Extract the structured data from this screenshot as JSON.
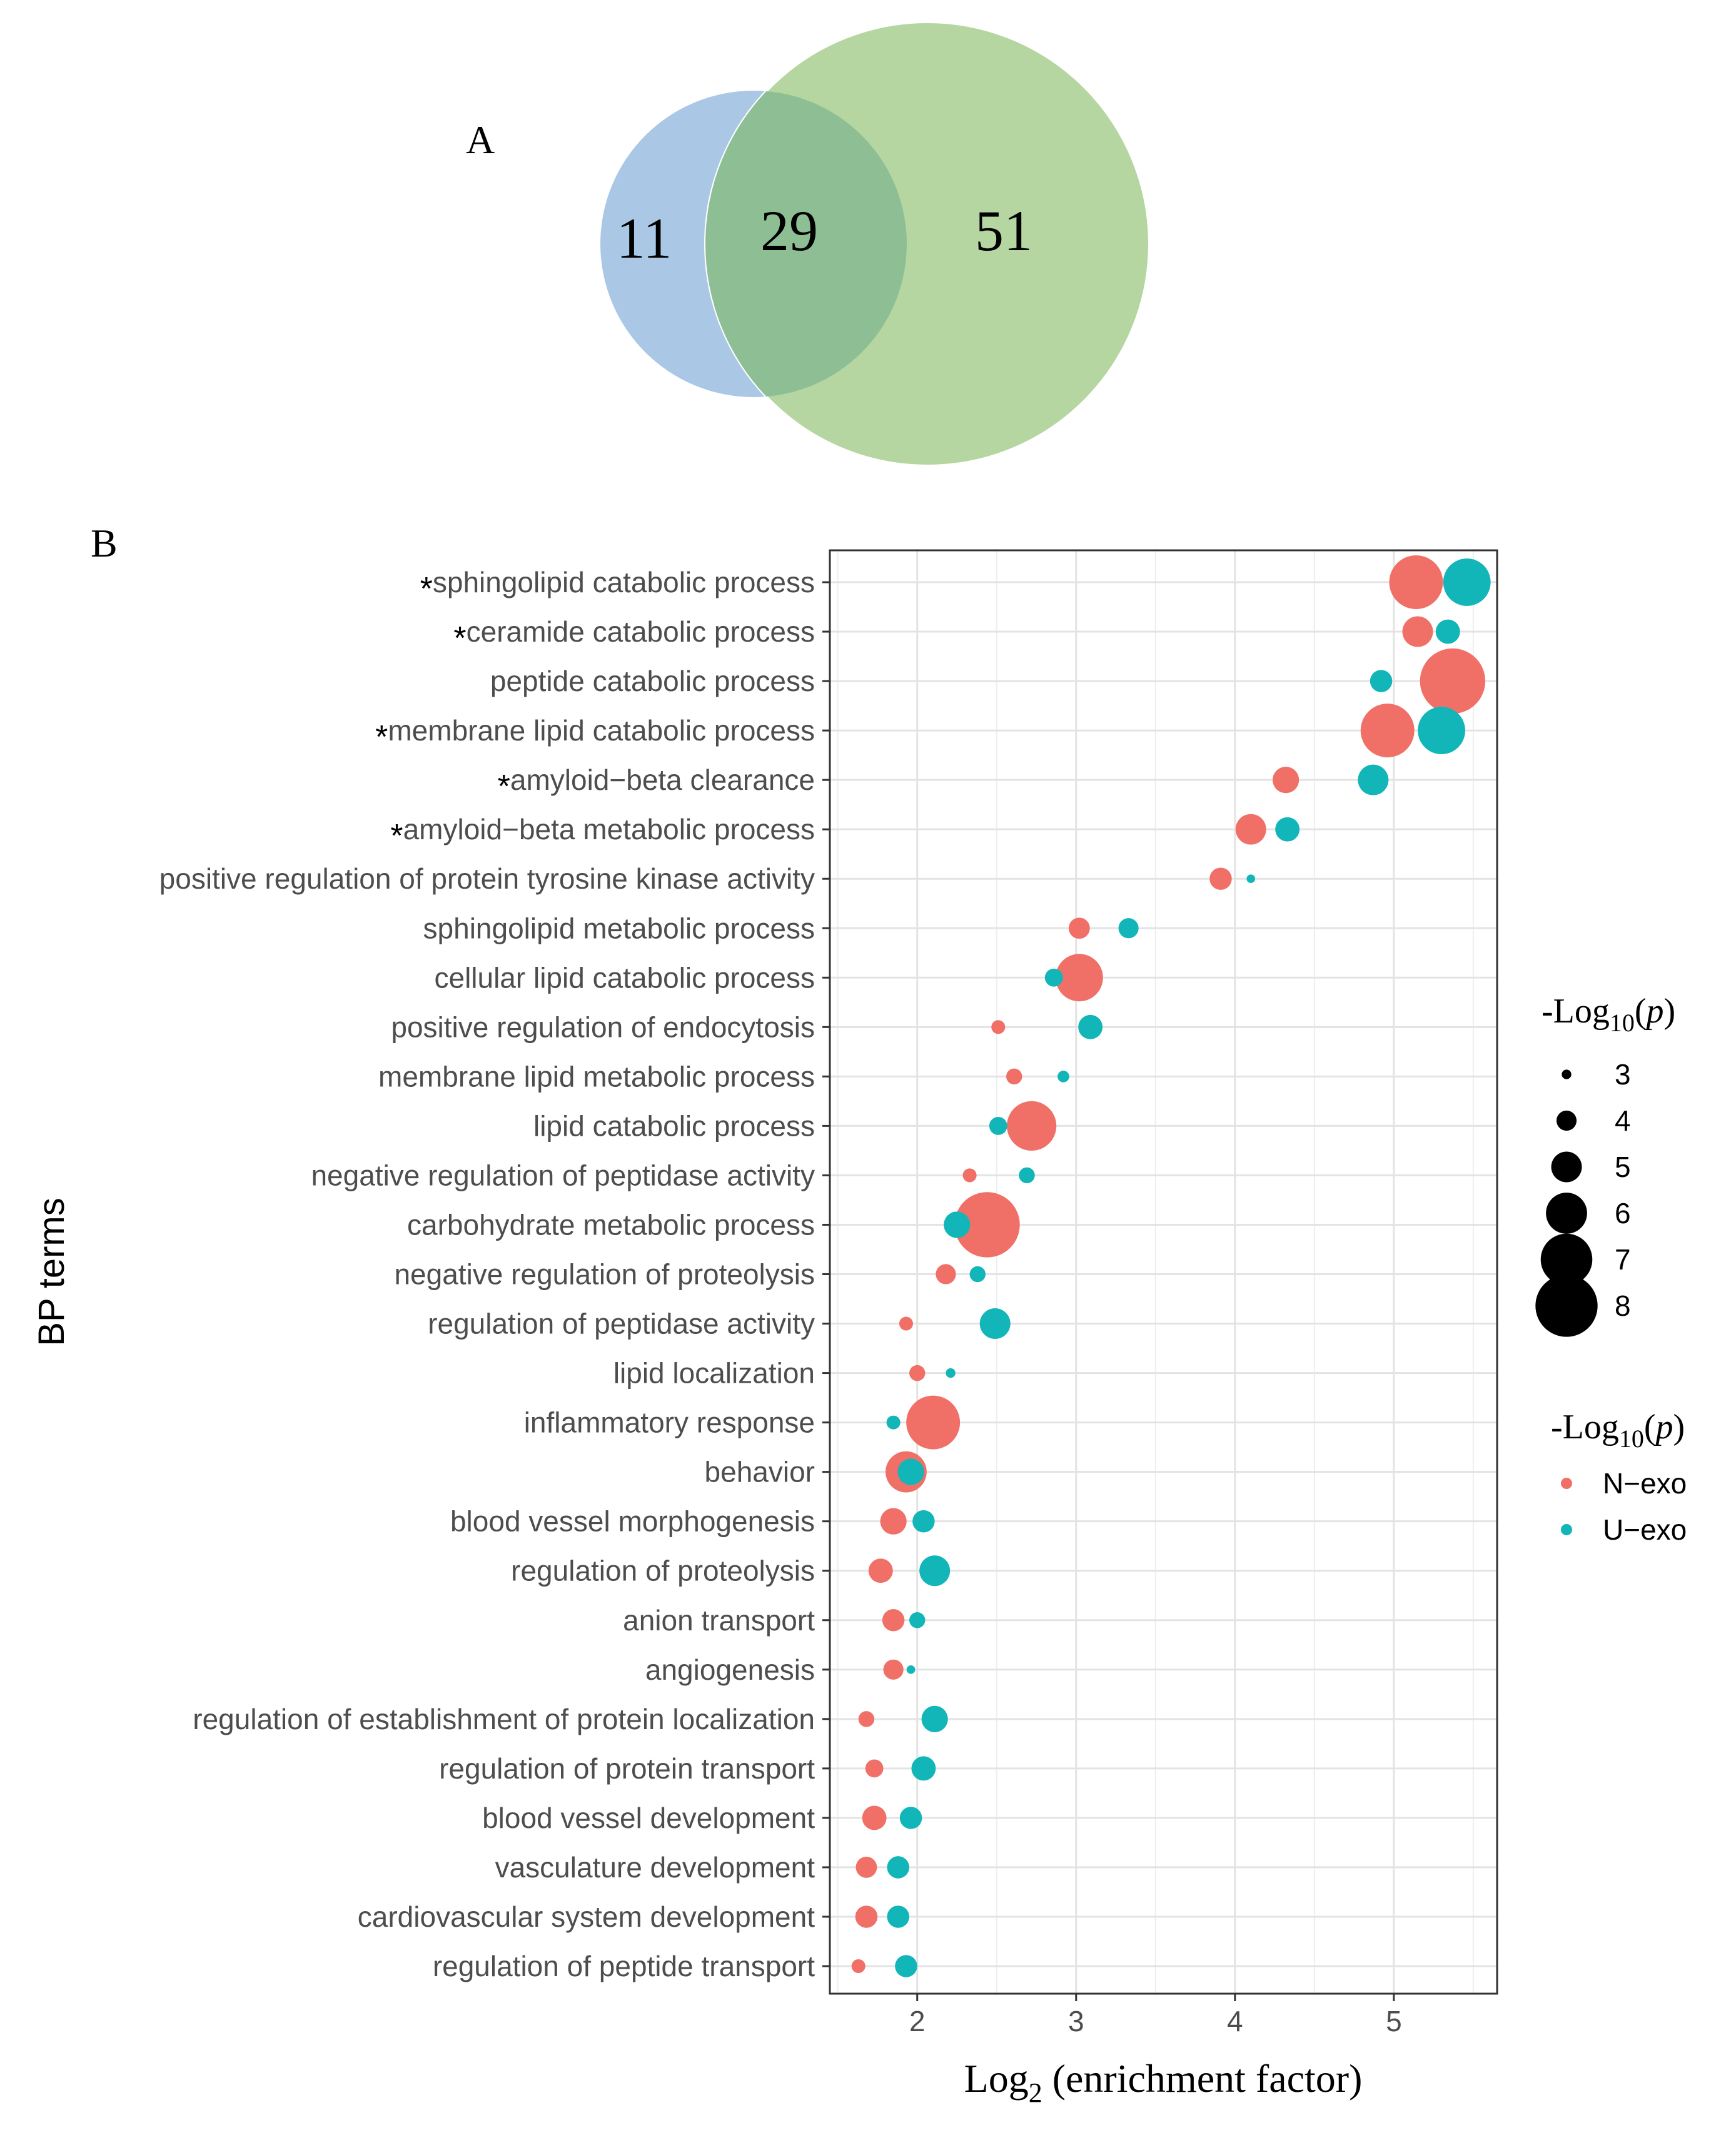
{
  "panel_a_label": "A",
  "panel_b_label": "B",
  "venn": {
    "left_only": "11",
    "overlap": "29",
    "right_only": "51",
    "colors": {
      "left": "#aac8e6",
      "right": "#b5d6a0",
      "overlap": "#8ebf94"
    }
  },
  "chart_data": {
    "type": "scatter",
    "subtype": "bubble",
    "xlabel_main": "Log",
    "xlabel_sub": "2",
    "xlabel_rest": " (enrichment factor)",
    "ylabel": "BP terms",
    "xlim": [
      1.45,
      5.65
    ],
    "xticks": [
      2,
      3,
      4,
      5
    ],
    "asterisk_symbol": "*",
    "categories": [
      {
        "label": "sphingolipid catabolic process",
        "star": true
      },
      {
        "label": "ceramide catabolic process",
        "star": true
      },
      {
        "label": "peptide catabolic process",
        "star": false
      },
      {
        "label": "membrane lipid catabolic process",
        "star": true
      },
      {
        "label": "amyloid−beta clearance",
        "star": true
      },
      {
        "label": "amyloid−beta metabolic process",
        "star": true
      },
      {
        "label": "positive regulation of protein tyrosine kinase activity",
        "star": false
      },
      {
        "label": "sphingolipid metabolic process",
        "star": false
      },
      {
        "label": "cellular lipid catabolic process",
        "star": false
      },
      {
        "label": "positive regulation of endocytosis",
        "star": false
      },
      {
        "label": "membrane lipid metabolic process",
        "star": false
      },
      {
        "label": "lipid catabolic process",
        "star": false
      },
      {
        "label": "negative regulation of peptidase activity",
        "star": false
      },
      {
        "label": "carbohydrate metabolic process",
        "star": false
      },
      {
        "label": "negative regulation of proteolysis",
        "star": false
      },
      {
        "label": "regulation of peptidase activity",
        "star": false
      },
      {
        "label": "lipid localization",
        "star": false
      },
      {
        "label": "inflammatory response",
        "star": false
      },
      {
        "label": "behavior",
        "star": false
      },
      {
        "label": "blood vessel morphogenesis",
        "star": false
      },
      {
        "label": "regulation of proteolysis",
        "star": false
      },
      {
        "label": "anion transport",
        "star": false
      },
      {
        "label": "angiogenesis",
        "star": false
      },
      {
        "label": "regulation of establishment of protein localization",
        "star": false
      },
      {
        "label": "regulation of protein transport",
        "star": false
      },
      {
        "label": "blood vessel development",
        "star": false
      },
      {
        "label": "vasculature development",
        "star": false
      },
      {
        "label": "cardiovascular system development",
        "star": false
      },
      {
        "label": "regulation of peptide transport",
        "star": false
      }
    ],
    "series": [
      {
        "name": "N−exo",
        "color": "#f07068",
        "x": [
          5.14,
          5.15,
          5.37,
          4.96,
          4.32,
          4.1,
          3.91,
          3.02,
          3.02,
          2.51,
          2.61,
          2.72,
          2.33,
          2.44,
          2.18,
          1.93,
          2.0,
          2.1,
          1.93,
          1.85,
          1.77,
          1.85,
          1.85,
          1.68,
          1.73,
          1.73,
          1.68,
          1.68,
          1.63
        ],
        "logp": [
          7.2,
          5.0,
          8.3,
          7.2,
          4.6,
          5.0,
          4.2,
          4.1,
          6.6,
          3.4,
          3.6,
          6.8,
          3.4,
          8.3,
          4.0,
          3.4,
          3.6,
          7.2,
          6.0,
          4.6,
          4.4,
          4.2,
          4.0,
          3.6,
          3.8,
          4.4,
          4.1,
          4.2,
          3.4
        ]
      },
      {
        "name": "U−exo",
        "color": "#12b5b8",
        "x": [
          5.46,
          5.34,
          4.92,
          5.3,
          4.87,
          4.33,
          4.1,
          3.33,
          2.86,
          3.09,
          2.92,
          2.51,
          2.69,
          2.25,
          2.38,
          2.49,
          2.21,
          1.85,
          1.96,
          2.04,
          2.11,
          2.0,
          1.96,
          2.11,
          2.04,
          1.96,
          1.88,
          1.88,
          1.93
        ],
        "logp": [
          6.6,
          4.4,
          4.2,
          6.6,
          5.0,
          4.4,
          2.9,
          4.0,
          3.8,
          4.4,
          3.2,
          3.8,
          3.6,
          4.6,
          3.6,
          5.0,
          3.0,
          3.4,
          4.6,
          4.2,
          5.0,
          3.6,
          2.9,
          4.6,
          4.4,
          4.2,
          4.2,
          4.2,
          4.2
        ]
      }
    ],
    "size_legend": {
      "title_main": "-Log",
      "title_sub": "10",
      "title_paren": "(",
      "title_var": "p",
      "title_close": ")",
      "values": [
        3,
        4,
        5,
        6,
        7,
        8
      ]
    },
    "color_legend": {
      "title_main": "-Log",
      "title_sub": "10",
      "title_paren": "(",
      "title_var": "p",
      "title_close": ")",
      "entries": [
        "N−exo",
        "U−exo"
      ]
    }
  }
}
